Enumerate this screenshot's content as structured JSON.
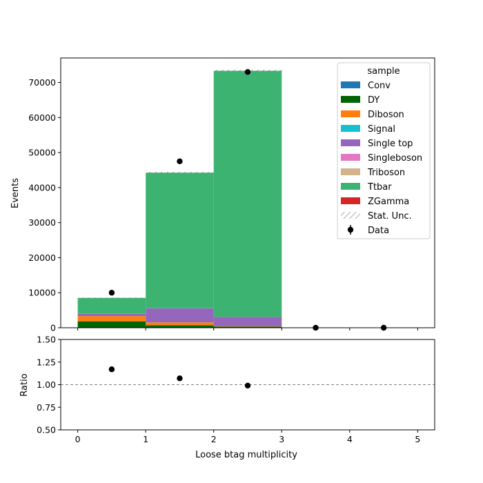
{
  "chart_data": [
    {
      "type": "bar",
      "stacked": true,
      "xlabel": "",
      "ylabel": "Events",
      "xlim": [
        -0.25,
        5.25
      ],
      "ylim": [
        0,
        77000
      ],
      "yticks": [
        0,
        10000,
        20000,
        30000,
        40000,
        50000,
        60000,
        70000
      ],
      "xticks": [
        0,
        1,
        2,
        3,
        4,
        5
      ],
      "bin_edges": [
        0,
        1,
        2,
        3
      ],
      "legend": {
        "title": "sample",
        "placement": "top-right"
      },
      "series": [
        {
          "name": "Conv",
          "color": "#1f77b4",
          "values": [
            30,
            20,
            10
          ]
        },
        {
          "name": "DY",
          "color": "#006400",
          "values": [
            1800,
            700,
            300
          ]
        },
        {
          "name": "Diboson",
          "color": "#ff7f0e",
          "values": [
            1500,
            800,
            100
          ]
        },
        {
          "name": "Signal",
          "color": "#17becf",
          "values": [
            20,
            20,
            10
          ]
        },
        {
          "name": "Single top",
          "color": "#9467bd",
          "values": [
            650,
            4000,
            2700
          ]
        },
        {
          "name": "Singleboson",
          "color": "#e377c2",
          "values": [
            20,
            20,
            10
          ]
        },
        {
          "name": "Triboson",
          "color": "#d2b48c",
          "values": [
            5,
            5,
            5
          ]
        },
        {
          "name": "Ttbar",
          "color": "#3cb371",
          "values": [
            4500,
            38700,
            70200
          ]
        },
        {
          "name": "ZGamma",
          "color": "#d62728",
          "values": [
            5,
            5,
            5
          ]
        }
      ],
      "stat_unc_label": "Stat. Unc.",
      "data": {
        "name": "Data",
        "x": [
          0.5,
          1.5,
          2.5,
          3.5,
          4.5
        ],
        "y": [
          10000,
          47500,
          73000,
          0,
          0
        ]
      }
    },
    {
      "type": "scatter",
      "xlabel": "Loose btag multiplicity",
      "ylabel": "Ratio",
      "xlim": [
        -0.25,
        5.25
      ],
      "ylim": [
        0.5,
        1.5
      ],
      "yticks": [
        "0.50",
        "0.75",
        "1.00",
        "1.25",
        "1.50"
      ],
      "xticks": [
        0,
        1,
        2,
        3,
        4,
        5
      ],
      "reference_line": 1.0,
      "x": [
        0.5,
        1.5,
        2.5
      ],
      "y": [
        1.17,
        1.07,
        0.99
      ]
    }
  ]
}
